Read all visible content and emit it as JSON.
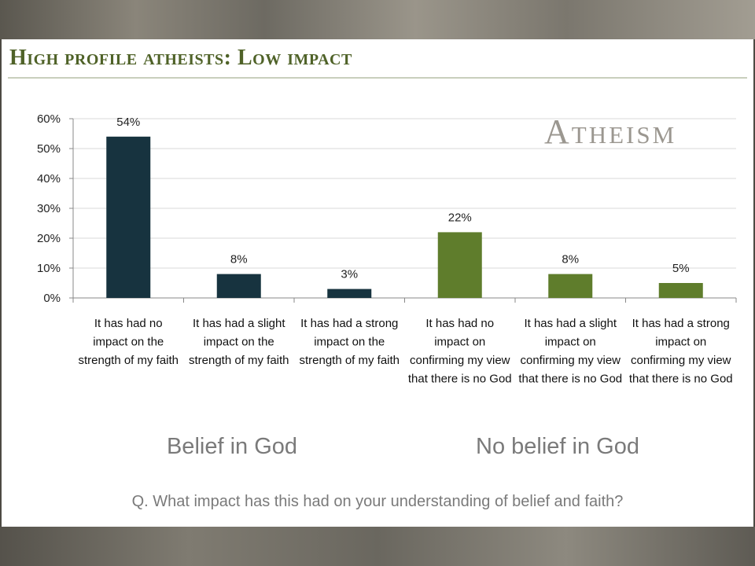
{
  "title": "High profile atheists: Low impact",
  "watermark": "Atheism",
  "groups": [
    "Belief in God",
    "No belief in God"
  ],
  "question": "Q. What impact has this had on your understanding of belief and faith?",
  "colors": {
    "belief": "#17333f",
    "no_belief": "#5f7d2c",
    "title": "#4f6228"
  },
  "chart_data": {
    "type": "bar",
    "categories": [
      [
        "It has had no",
        "impact on the",
        "strength of my faith"
      ],
      [
        "It has had a slight",
        "impact on the",
        "strength of my faith"
      ],
      [
        "It has had a strong",
        "impact on the",
        "strength of my faith"
      ],
      [
        "It has had no",
        "impact on",
        "confirming my view",
        "that there is no God"
      ],
      [
        "It has had a slight",
        "impact on",
        "confirming my view",
        "that there is no God"
      ],
      [
        "It has had a strong",
        "impact on",
        "confirming my view",
        "that there is no God"
      ]
    ],
    "values": [
      54,
      8,
      3,
      22,
      8,
      5
    ],
    "value_labels": [
      "54%",
      "8%",
      "3%",
      "22%",
      "8%",
      "5%"
    ],
    "bar_groups": [
      "belief",
      "belief",
      "belief",
      "no_belief",
      "no_belief",
      "no_belief"
    ],
    "y_ticks": [
      "0%",
      "10%",
      "20%",
      "30%",
      "40%",
      "50%",
      "60%"
    ],
    "ylim": [
      0,
      60
    ],
    "grid": true,
    "legend": "none"
  }
}
